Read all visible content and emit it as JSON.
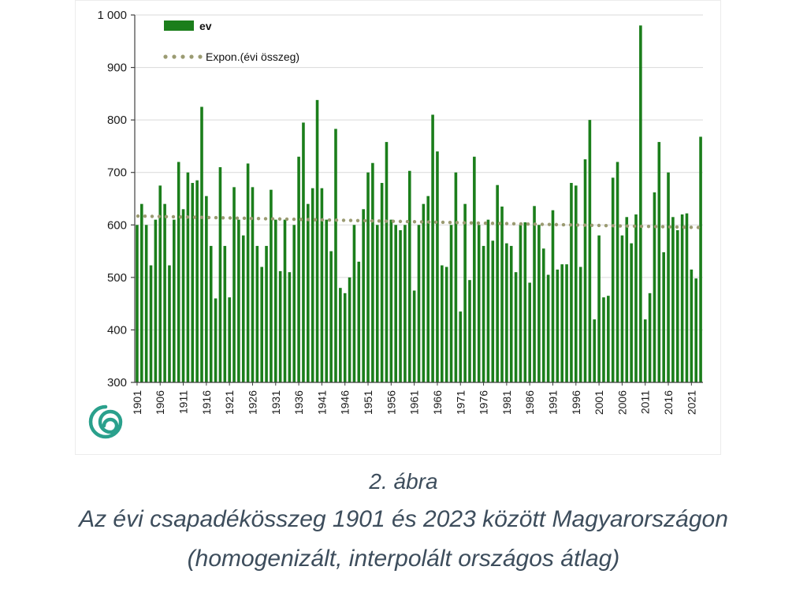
{
  "colors": {
    "bar": "#1b7e1b",
    "trend_dot": "#9b9b72",
    "axis": "#404040",
    "grid": "#d9d9d9",
    "tick_text": "#1a1a1a",
    "caption_text": "#3d4d5c",
    "logo": "#2aa08c"
  },
  "caption": {
    "line1": "2. ábra",
    "line2": "Az évi csapadékösszeg 1901 és 2023 között Magyarországon",
    "line3": "(homogenizált, interpolált országos átlag)"
  },
  "chart_data": {
    "type": "bar",
    "title": "",
    "xlabel": "",
    "ylabel": "",
    "ylim": [
      300,
      1000
    ],
    "ytick_step": 100,
    "ytick_labels": [
      "300",
      "400",
      "500",
      "600",
      "700",
      "800",
      "900",
      "1 000"
    ],
    "grid": true,
    "legend_position": "top-left",
    "series_label": "ev",
    "trend": {
      "label": "Expon.(évi összeg)",
      "type": "exponential",
      "start_value": 617,
      "end_value": 595
    },
    "year_start": 1901,
    "year_end": 2023,
    "xtick_years": [
      1901,
      1906,
      1911,
      1916,
      1921,
      1926,
      1931,
      1936,
      1941,
      1946,
      1951,
      1956,
      1961,
      1966,
      1971,
      1976,
      1981,
      1986,
      1991,
      1996,
      2001,
      2006,
      2011,
      2016,
      2021
    ],
    "values": [
      600,
      640,
      600,
      523,
      610,
      675,
      640,
      523,
      610,
      720,
      630,
      700,
      680,
      685,
      825,
      655,
      560,
      460,
      710,
      560,
      462,
      672,
      610,
      580,
      717,
      672,
      560,
      520,
      560,
      667,
      610,
      512,
      610,
      510,
      600,
      730,
      795,
      640,
      670,
      838,
      670,
      610,
      550,
      783,
      480,
      470,
      500,
      600,
      530,
      630,
      700,
      718,
      600,
      680,
      758,
      610,
      600,
      590,
      600,
      703,
      475,
      600,
      640,
      655,
      810,
      740,
      523,
      520,
      600,
      700,
      435,
      640,
      495,
      730,
      600,
      560,
      610,
      570,
      676,
      635,
      565,
      560,
      510,
      600,
      605,
      490,
      636,
      600,
      555,
      505,
      628,
      515,
      525,
      525,
      680,
      675,
      520,
      725,
      800,
      420,
      580,
      462,
      465,
      690,
      720,
      580,
      615,
      565,
      620,
      980,
      420,
      470,
      662,
      758,
      548,
      700,
      615,
      590,
      620,
      622,
      515,
      498,
      768
    ]
  }
}
